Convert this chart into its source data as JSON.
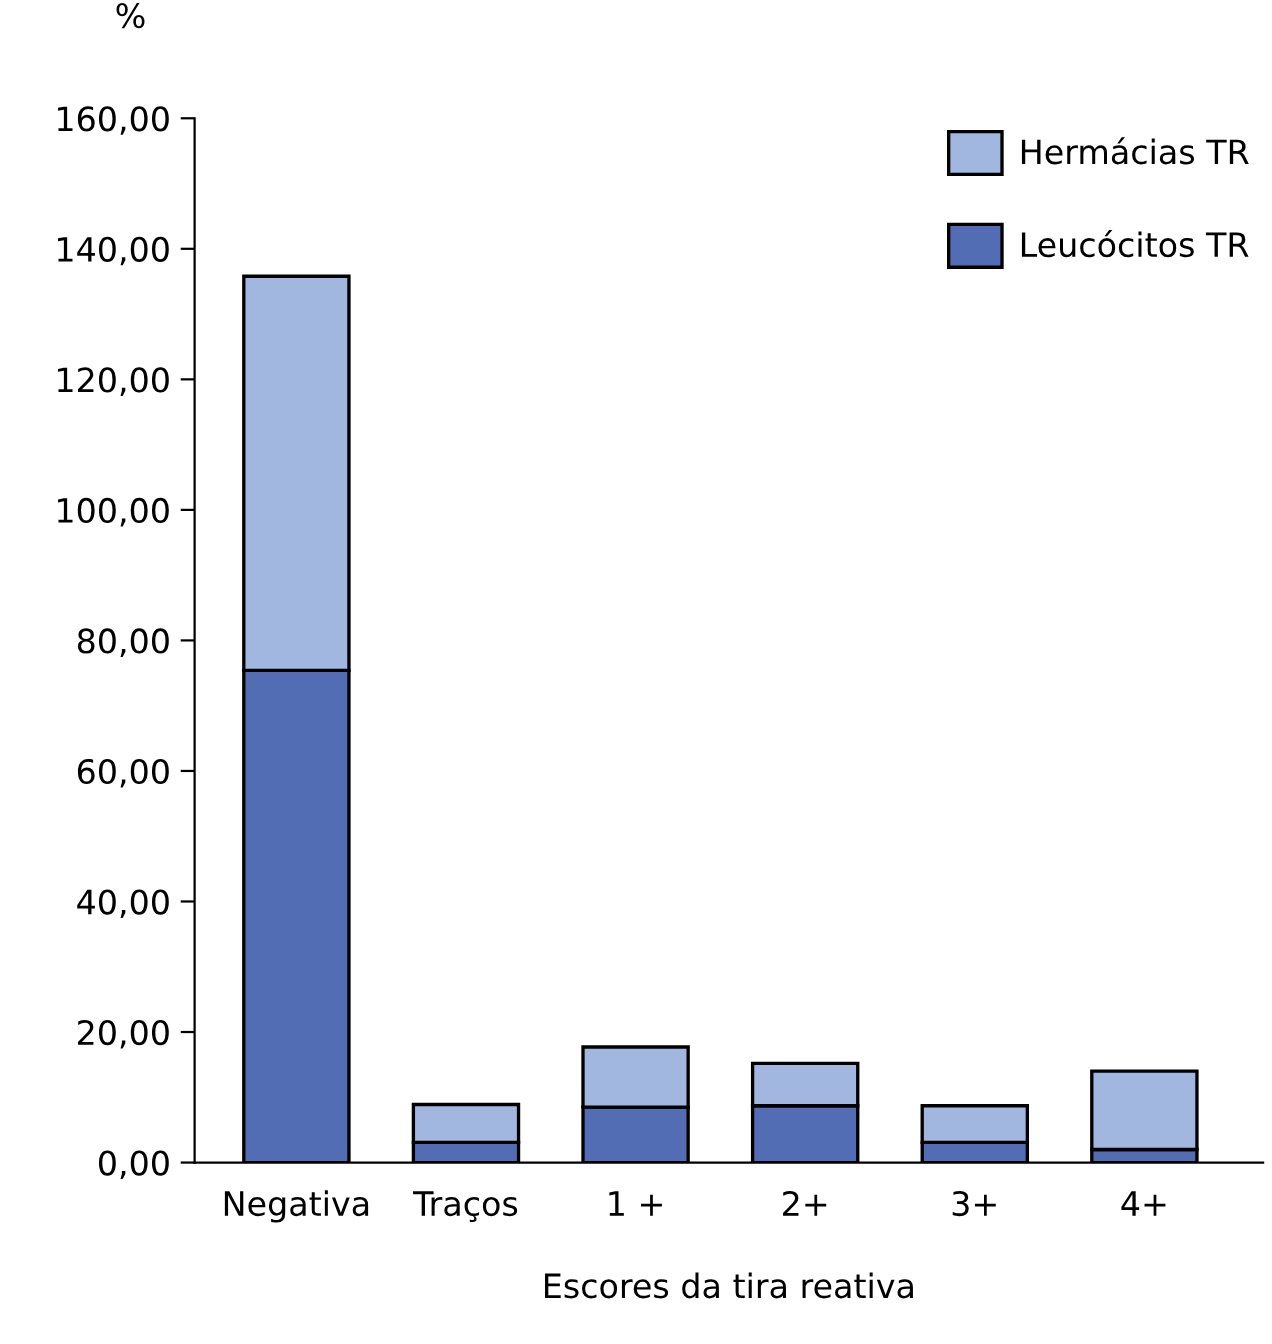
{
  "chart_data": {
    "type": "bar",
    "stacked": true,
    "ylabel": "%",
    "xlabel": "Escores da tira reativa",
    "categories": [
      "Negativa",
      "Traços",
      "1 +",
      "2+",
      "3+",
      "4+"
    ],
    "series": [
      {
        "name": "Leucócitos TR",
        "color": "#526db4",
        "values": [
          75.4,
          3.1,
          8.5,
          8.7,
          3.1,
          2.0
        ]
      },
      {
        "name": "Hermácias TR",
        "color": "#a2b7e0",
        "values": [
          60.4,
          5.8,
          9.2,
          6.5,
          5.6,
          12.0
        ]
      }
    ],
    "ylim": [
      0,
      160
    ],
    "yticks": [
      {
        "value": 0,
        "label": "0,00"
      },
      {
        "value": 20,
        "label": "20,00"
      },
      {
        "value": 40,
        "label": "40,00"
      },
      {
        "value": 60,
        "label": "60,00"
      },
      {
        "value": 80,
        "label": "80,00"
      },
      {
        "value": 100,
        "label": "100,00"
      },
      {
        "value": 120,
        "label": "120,00"
      },
      {
        "value": 140,
        "label": "140,00"
      },
      {
        "value": 160,
        "label": "160,00"
      }
    ],
    "legend": "top right",
    "grid": false
  }
}
